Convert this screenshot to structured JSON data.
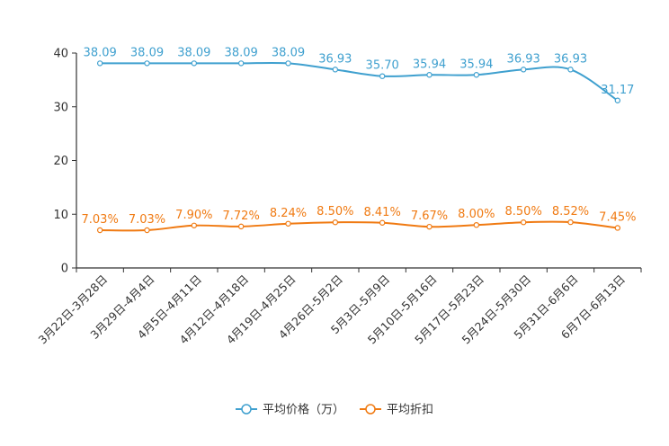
{
  "chart_data": {
    "type": "line",
    "title": "",
    "xlabel": "",
    "ylabel": "",
    "ylim": [
      0,
      40
    ],
    "yticks": [
      0,
      10,
      20,
      30,
      40
    ],
    "grid": false,
    "legend_position": "bottom-center",
    "categories": [
      "3月22日-3月28日",
      "3月29日-4月4日",
      "4月5日-4月11日",
      "4月12日-4月18日",
      "4月19日-4月25日",
      "4月26日-5月2日",
      "5月3日-5月9日",
      "5月10日-5月16日",
      "5月17日-5月23日",
      "5月24日-5月30日",
      "5月31日-6月6日",
      "6月7日-6月13日"
    ],
    "series": [
      {
        "name": "平均价格（万）",
        "color": "#3fa0cf",
        "values": [
          38.09,
          38.09,
          38.09,
          38.09,
          38.09,
          36.93,
          35.7,
          35.94,
          35.94,
          36.93,
          36.93,
          31.17
        ],
        "labels": [
          "38.09",
          "38.09",
          "38.09",
          "38.09",
          "38.09",
          "36.93",
          "35.70",
          "35.94",
          "35.94",
          "36.93",
          "36.93",
          "31.17"
        ]
      },
      {
        "name": "平均折扣",
        "color": "#f07a12",
        "values": [
          7.03,
          7.03,
          7.9,
          7.72,
          8.24,
          8.5,
          8.41,
          7.67,
          8.0,
          8.5,
          8.52,
          7.45
        ],
        "labels": [
          "7.03%",
          "7.03%",
          "7.90%",
          "7.72%",
          "8.24%",
          "8.50%",
          "8.41%",
          "7.67%",
          "8.00%",
          "8.50%",
          "8.52%",
          "7.45%"
        ]
      }
    ]
  }
}
